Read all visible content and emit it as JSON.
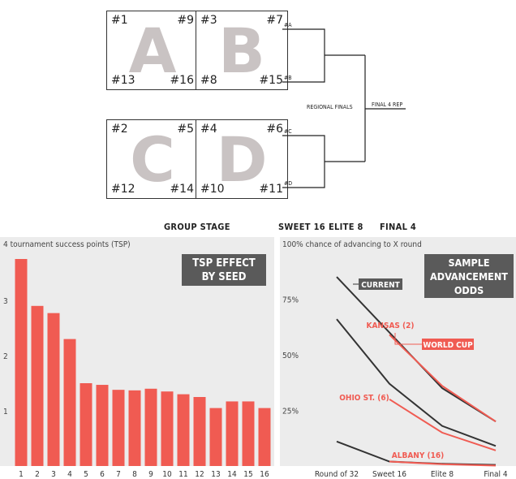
{
  "groups": [
    {
      "letter": "A",
      "seeds": [
        "#1",
        "#9",
        "#13",
        "#16"
      ]
    },
    {
      "letter": "B",
      "seeds": [
        "#3",
        "#7",
        "#8",
        "#15"
      ]
    },
    {
      "letter": "C",
      "seeds": [
        "#2",
        "#5",
        "#12",
        "#14"
      ]
    },
    {
      "letter": "D",
      "seeds": [
        "#4",
        "#6",
        "#10",
        "#11"
      ]
    }
  ],
  "bracket": {
    "slots": [
      "#A",
      "#B",
      "#C",
      "#D"
    ],
    "regional_finals": "REGIONAL FINALS",
    "final4_rep": "FINAL 4 REP"
  },
  "stages": {
    "group": "GROUP STAGE",
    "sweet16": "SWEET 16",
    "elite8": "ELITE 8",
    "final4": "FINAL 4"
  },
  "colors": {
    "bar": "#f05b52",
    "dark_line": "#333333",
    "accent": "#f05b52",
    "panel_bg": "#ececec",
    "label_bg": "#5a5a5a"
  },
  "chart_data": [
    {
      "type": "bar",
      "title": "TSP EFFECT BY SEED",
      "title_lines": [
        "TSP EFFECT",
        "BY SEED"
      ],
      "ylabel": "4 tournament success points (TSP)",
      "ytick_labels": [
        "1",
        "2",
        "3"
      ],
      "yticks": [
        1,
        2,
        3
      ],
      "ylim": [
        0,
        4
      ],
      "grid": false,
      "categories": [
        "1",
        "2",
        "3",
        "4",
        "5",
        "6",
        "7",
        "8",
        "9",
        "10",
        "11",
        "12",
        "13",
        "14",
        "15",
        "16"
      ],
      "values": [
        3.75,
        2.9,
        2.77,
        2.3,
        1.5,
        1.47,
        1.38,
        1.37,
        1.4,
        1.35,
        1.3,
        1.25,
        1.05,
        1.17,
        1.17,
        1.05
      ]
    },
    {
      "type": "line",
      "title": "SAMPLE ADVANCEMENT ODDS",
      "title_lines": [
        "SAMPLE",
        "ADVANCEMENT",
        "ODDS"
      ],
      "ylabel": "100% chance of advancing to X round",
      "ytick_labels": [
        "25%",
        "50%",
        "75%"
      ],
      "yticks": [
        25,
        50,
        75
      ],
      "ylim": [
        0,
        100
      ],
      "grid": false,
      "categories": [
        "Round of 32",
        "Sweet 16",
        "Elite 8",
        "Final 4"
      ],
      "series": [
        {
          "label": "CURRENT",
          "color": "#333333",
          "points": [
            [
              0,
              85
            ],
            [
              1,
              60
            ],
            [
              2,
              35
            ],
            [
              3,
              20
            ]
          ]
        },
        {
          "label": "",
          "color": "#333333",
          "points": [
            [
              0,
              66
            ],
            [
              1,
              37
            ],
            [
              2,
              18
            ],
            [
              3,
              9
            ]
          ]
        },
        {
          "label": "",
          "color": "#333333",
          "points": [
            [
              0,
              11
            ],
            [
              1,
              2
            ],
            [
              2,
              1
            ],
            [
              3,
              0.5
            ]
          ]
        },
        {
          "label": "KANSAS (2)",
          "color": "#f05b52",
          "points": [
            [
              1,
              59
            ],
            [
              2,
              36
            ],
            [
              3,
              20
            ]
          ]
        },
        {
          "label": "OHIO ST. (6)",
          "color": "#f05b52",
          "points": [
            [
              1,
              30
            ],
            [
              2,
              15
            ],
            [
              3,
              7
            ]
          ]
        },
        {
          "label": "ALBANY (16)",
          "color": "#f05b52",
          "points": [
            [
              1,
              2
            ],
            [
              2,
              0.8
            ],
            [
              3,
              0.2
            ]
          ]
        }
      ],
      "annotations": {
        "world_cup": "WORLD CUP"
      }
    }
  ]
}
